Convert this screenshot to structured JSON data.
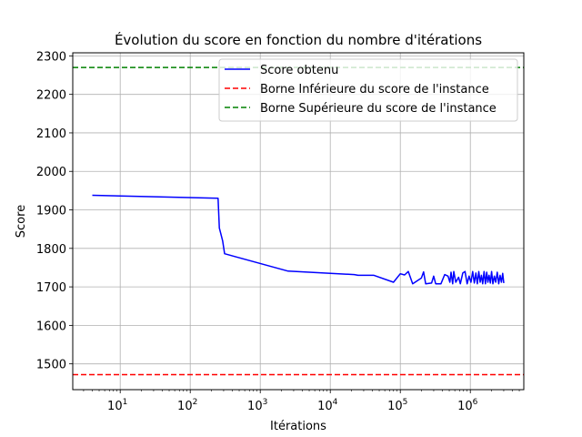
{
  "chart_data": {
    "type": "line",
    "title": "Évolution du score en fonction du nombre d'itérations",
    "xlabel": "Itérations",
    "ylabel": "Score",
    "xscale": "log",
    "xlim": [
      2.1,
      5800000
    ],
    "ylim": [
      1433,
      2308
    ],
    "grid": true,
    "legend_position": "top-right",
    "x_ticks": [
      {
        "base": "10",
        "exp": "1",
        "value": 10
      },
      {
        "base": "10",
        "exp": "2",
        "value": 100
      },
      {
        "base": "10",
        "exp": "3",
        "value": 1000
      },
      {
        "base": "10",
        "exp": "4",
        "value": 10000
      },
      {
        "base": "10",
        "exp": "5",
        "value": 100000
      },
      {
        "base": "10",
        "exp": "6",
        "value": 1000000
      }
    ],
    "y_ticks": [
      "1500",
      "1600",
      "1700",
      "1800",
      "1900",
      "2000",
      "2100",
      "2200",
      "2300"
    ],
    "series": [
      {
        "name": "Score obtenu",
        "color": "#0000ff",
        "style": "solid",
        "x": [
          4,
          250,
          260,
          290,
          310,
          2500,
          22000,
          25000,
          42000,
          80000,
          100000,
          115000,
          130000,
          150000,
          200000,
          215000,
          230000,
          280000,
          300000,
          320000,
          380000,
          430000,
          480000,
          510000,
          530000,
          560000,
          580000,
          620000,
          680000,
          720000,
          780000,
          840000,
          900000,
          960000,
          1020000,
          1080000,
          1140000,
          1200000,
          1260000,
          1320000,
          1380000,
          1440000,
          1500000,
          1570000,
          1640000,
          1710000,
          1780000,
          1850000,
          1930000,
          2010000,
          2100000,
          2200000,
          2300000,
          2420000,
          2540000,
          2660000,
          2780000,
          2900000,
          3000000
        ],
        "y": [
          1938,
          1930,
          1853,
          1820,
          1786,
          1741,
          1732,
          1730,
          1730,
          1712,
          1734,
          1731,
          1740,
          1708,
          1723,
          1739,
          1708,
          1710,
          1728,
          1708,
          1708,
          1732,
          1728,
          1712,
          1738,
          1708,
          1740,
          1712,
          1725,
          1708,
          1736,
          1740,
          1708,
          1728,
          1712,
          1740,
          1710,
          1736,
          1708,
          1740,
          1712,
          1730,
          1708,
          1740,
          1708,
          1738,
          1712,
          1730,
          1710,
          1740,
          1708,
          1728,
          1712,
          1738,
          1708,
          1730,
          1712,
          1735,
          1710
        ]
      },
      {
        "name": "Borne Inférieure du score de l'instance",
        "color": "#ff0000",
        "style": "dashed",
        "y_const": 1472
      },
      {
        "name": "Borne Supérieure du score de l'instance",
        "color": "#008000",
        "style": "dashed",
        "y_const": 2270
      }
    ]
  }
}
